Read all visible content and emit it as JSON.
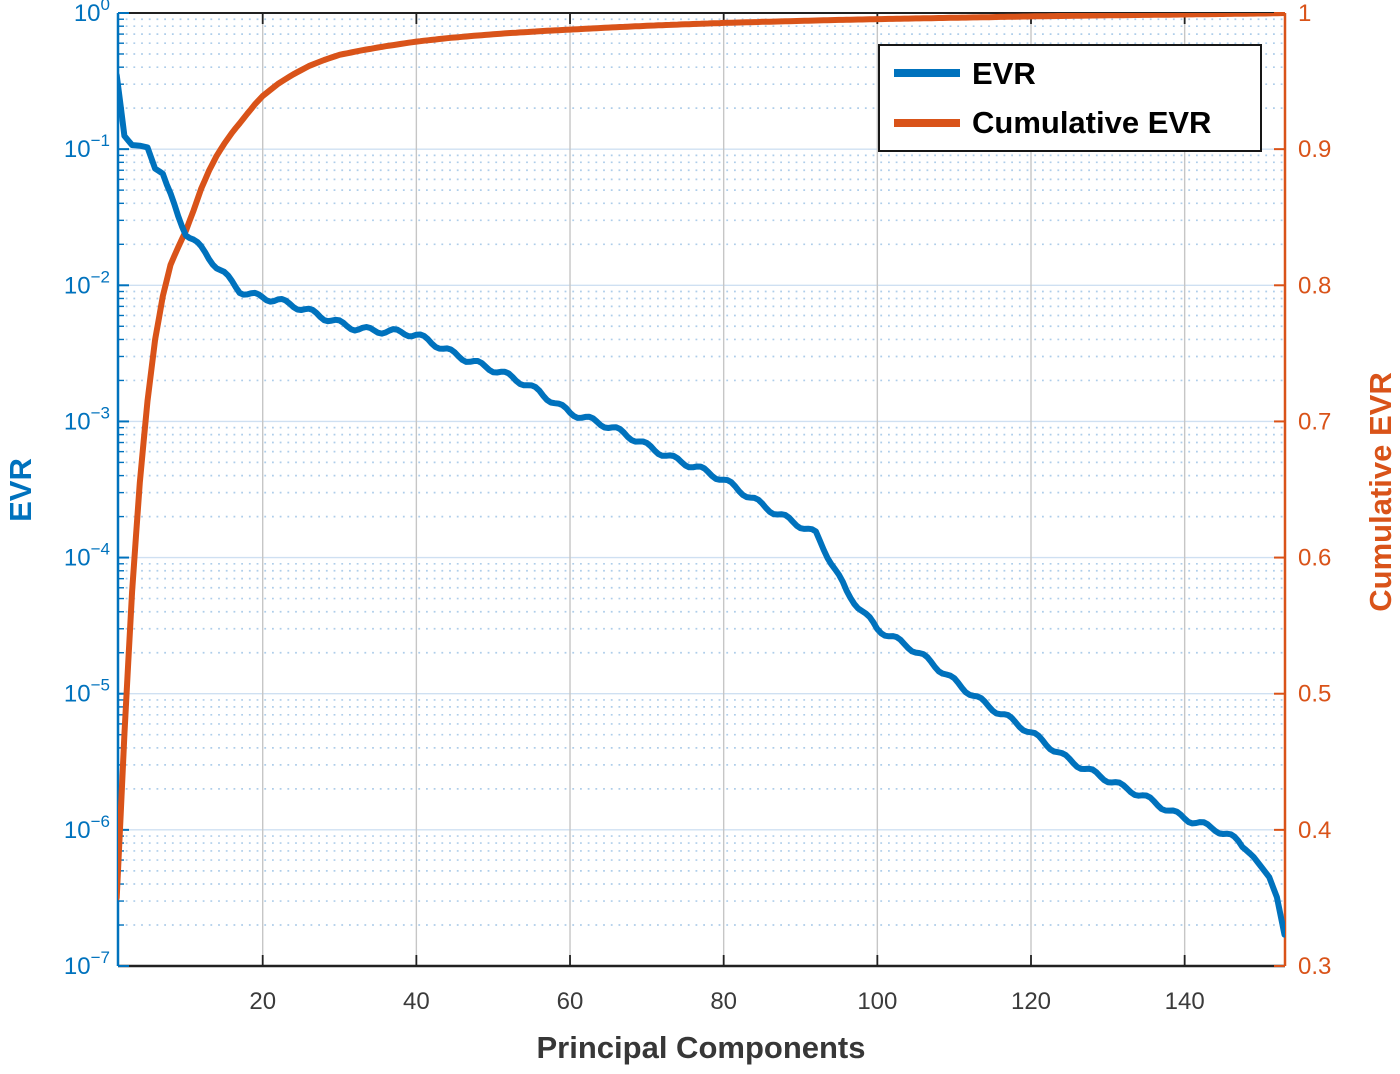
{
  "chart_data": {
    "type": "line",
    "title": "",
    "xlabel": "Principal Components",
    "x_ticks": [
      20,
      40,
      60,
      80,
      100,
      120,
      140
    ],
    "xlim": [
      1,
      153
    ],
    "grid": {
      "y_major": "solid",
      "y_minor": "dotted-log",
      "x_major": "solid",
      "x_minor": "none"
    },
    "left_axis": {
      "label": "EVR",
      "scale": "log10",
      "tick_exponents": [
        0,
        -1,
        -2,
        -3,
        -4,
        -5,
        -6,
        -7
      ],
      "lim_exponents": [
        0,
        -7
      ],
      "color": "#0072BD"
    },
    "right_axis": {
      "label": "Cumulative EVR",
      "ticks": [
        "1",
        "0.9",
        "0.8",
        "0.7",
        "0.6",
        "0.5",
        "0.4",
        "0.3"
      ],
      "tick_values": [
        1,
        0.9,
        0.8,
        0.7,
        0.6,
        0.5,
        0.4,
        0.3
      ],
      "lim": [
        0.3,
        1
      ],
      "color": "#D95319"
    },
    "legend": {
      "position": "northeast",
      "entries": [
        {
          "label": "EVR",
          "color": "#0072BD"
        },
        {
          "label": "Cumulative EVR",
          "color": "#D95319"
        }
      ]
    },
    "series": [
      {
        "name": "EVR",
        "axis": "left",
        "color": "#0072BD",
        "points": [
          [
            1,
            0.35
          ],
          [
            2,
            0.125
          ],
          [
            3,
            0.107
          ],
          [
            4,
            0.106
          ],
          [
            5,
            0.103
          ],
          [
            6,
            0.072
          ],
          [
            7,
            0.066
          ],
          [
            8,
            0.046
          ],
          [
            9,
            0.032
          ],
          [
            10,
            0.024
          ],
          [
            11,
            0.021
          ],
          [
            12,
            0.018
          ],
          [
            13,
            0.0155
          ],
          [
            14,
            0.0135
          ],
          [
            15,
            0.012
          ],
          [
            16,
            0.0105
          ],
          [
            17,
            0.0093
          ],
          [
            18,
            0.0089
          ],
          [
            20,
            0.0084
          ],
          [
            22,
            0.0078
          ],
          [
            25,
            0.0066
          ],
          [
            28,
            0.0057
          ],
          [
            32,
            0.005
          ],
          [
            36,
            0.0046
          ],
          [
            40,
            0.0042
          ],
          [
            44,
            0.0034
          ],
          [
            48,
            0.0027
          ],
          [
            52,
            0.0021
          ],
          [
            56,
            0.00165
          ],
          [
            60,
            0.0012
          ],
          [
            64,
            0.00095
          ],
          [
            68,
            0.00075
          ],
          [
            72,
            0.0006
          ],
          [
            76,
            0.00047
          ],
          [
            80,
            0.00036
          ],
          [
            84,
            0.00027
          ],
          [
            88,
            0.0002
          ],
          [
            92,
            0.000145
          ],
          [
            96,
            5.6e-05
          ],
          [
            100,
            3.1e-05
          ],
          [
            104,
            2.2e-05
          ],
          [
            108,
            1.5e-05
          ],
          [
            112,
            1.05e-05
          ],
          [
            116,
            7.2e-06
          ],
          [
            120,
            5e-06
          ],
          [
            124,
            3.6e-06
          ],
          [
            128,
            2.7e-06
          ],
          [
            132,
            2e-06
          ],
          [
            136,
            1.6e-06
          ],
          [
            140,
            1.26e-06
          ],
          [
            144,
            1e-06
          ],
          [
            147,
            8e-07
          ],
          [
            149,
            6.3e-07
          ],
          [
            151,
            4.5e-07
          ],
          [
            152,
            3.2e-07
          ],
          [
            153,
            1.7e-07
          ]
        ]
      },
      {
        "name": "Cumulative EVR",
        "axis": "right",
        "color": "#D95319",
        "points": [
          [
            1,
            0.35
          ],
          [
            2,
            0.47
          ],
          [
            3,
            0.575
          ],
          [
            4,
            0.655
          ],
          [
            5,
            0.715
          ],
          [
            6,
            0.76
          ],
          [
            7,
            0.792
          ],
          [
            8,
            0.815
          ],
          [
            9,
            0.828
          ],
          [
            10,
            0.84
          ],
          [
            11,
            0.855
          ],
          [
            12,
            0.871
          ],
          [
            13,
            0.884
          ],
          [
            14,
            0.895
          ],
          [
            15,
            0.904
          ],
          [
            16,
            0.912
          ],
          [
            17,
            0.919
          ],
          [
            18,
            0.926
          ],
          [
            19,
            0.933
          ],
          [
            20,
            0.939
          ],
          [
            22,
            0.948
          ],
          [
            24,
            0.955
          ],
          [
            26,
            0.961
          ],
          [
            28,
            0.9655
          ],
          [
            30,
            0.9693
          ],
          [
            33,
            0.9727
          ],
          [
            36,
            0.9756
          ],
          [
            40,
            0.979
          ],
          [
            44,
            0.9815
          ],
          [
            48,
            0.9835
          ],
          [
            52,
            0.9852
          ],
          [
            56,
            0.9866
          ],
          [
            60,
            0.9878
          ],
          [
            65,
            0.9893
          ],
          [
            70,
            0.9906
          ],
          [
            75,
            0.9917
          ],
          [
            80,
            0.9927
          ],
          [
            85,
            0.9935
          ],
          [
            90,
            0.9942
          ],
          [
            95,
            0.9949
          ],
          [
            100,
            0.9955
          ],
          [
            105,
            0.996
          ],
          [
            110,
            0.9965
          ],
          [
            115,
            0.997
          ],
          [
            120,
            0.9975
          ],
          [
            125,
            0.9979
          ],
          [
            130,
            0.9983
          ],
          [
            135,
            0.9986
          ],
          [
            140,
            0.9989
          ],
          [
            144,
            0.9992
          ],
          [
            148,
            0.9995
          ],
          [
            151,
            0.9997
          ],
          [
            153,
            1.0
          ]
        ]
      }
    ]
  },
  "style": {
    "background": "#ffffff",
    "grid_major_y_color": "#cfe0f2",
    "grid_minor_y_color": "#aecdea",
    "grid_major_x_color": "#c6c6c6",
    "axis_dark_color": "#212121",
    "xtick_label_color": "#3b3b3b",
    "line_width": 6
  }
}
